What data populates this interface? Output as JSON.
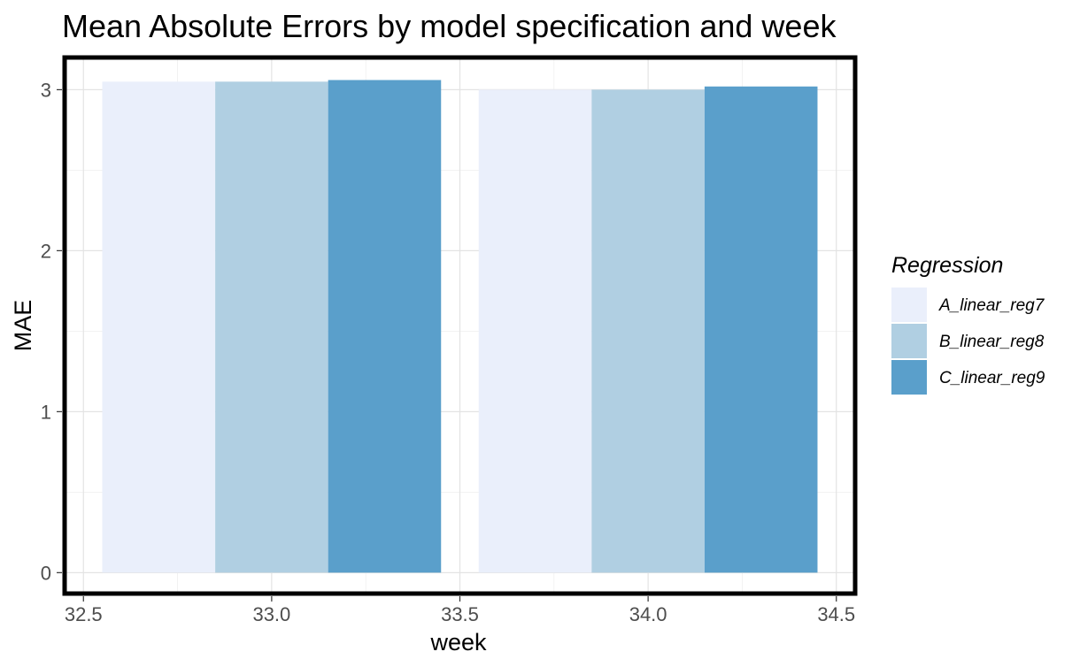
{
  "chart_data": {
    "type": "bar",
    "title": "Mean Absolute Errors by model specification and week",
    "xlabel": "week",
    "ylabel": "MAE",
    "x": [
      33,
      34
    ],
    "series": [
      {
        "name": "A_linear_reg7",
        "values": [
          3.05,
          3.0
        ],
        "color": "#eaeffb"
      },
      {
        "name": "B_linear_reg8",
        "values": [
          3.05,
          3.0
        ],
        "color": "#b0cfe2"
      },
      {
        "name": "C_linear_reg9",
        "values": [
          3.06,
          3.02
        ],
        "color": "#5a9fcb"
      }
    ],
    "xlim": [
      32.45,
      34.55
    ],
    "ylim": [
      -0.13,
      3.2
    ],
    "xticks": [
      32.5,
      33.0,
      33.5,
      34.0,
      34.5
    ],
    "xtick_labels": [
      "32.5",
      "33.0",
      "33.5",
      "34.0",
      "34.5"
    ],
    "yticks": [
      0,
      1,
      2,
      3
    ],
    "ytick_labels": [
      "0",
      "1",
      "2",
      "3"
    ],
    "grid": true,
    "legend": {
      "title": "Regression",
      "position": "right"
    }
  }
}
